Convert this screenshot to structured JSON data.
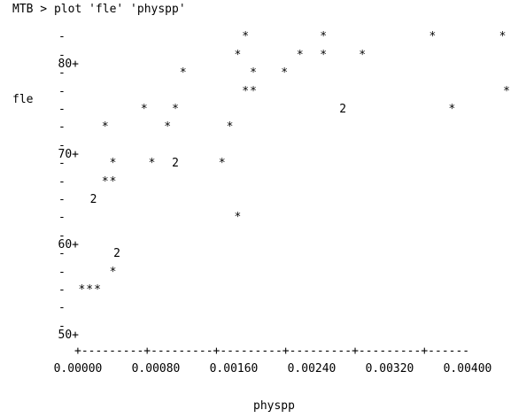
{
  "command": "MTB > plot 'fle' 'physpp'",
  "chart_data": {
    "type": "scatter",
    "xlabel": "physpp",
    "ylabel": "fle",
    "xlim": [
      0.0,
      0.0048
    ],
    "ylim": [
      48,
      84
    ],
    "y_ticks": [
      {
        "value": 80,
        "label": "80+"
      },
      {
        "value": 70,
        "label": "70+"
      },
      {
        "value": 60,
        "label": "60+"
      },
      {
        "value": 50,
        "label": "50+"
      }
    ],
    "y_minor_ticks": [
      83,
      81,
      79,
      77,
      75,
      73,
      71,
      69,
      67,
      65,
      63,
      61,
      59,
      57,
      55,
      53,
      51
    ],
    "x_ticks": [
      {
        "value": 0.0,
        "label": "0.00000"
      },
      {
        "value": 0.0008,
        "label": "0.00080"
      },
      {
        "value": 0.0016,
        "label": "0.00160"
      },
      {
        "value": 0.0024,
        "label": "0.00240"
      },
      {
        "value": 0.0032,
        "label": "0.00320"
      },
      {
        "value": 0.004,
        "label": "0.00400"
      }
    ],
    "x_axis_line": "+---------+---------+---------+---------+---------+------",
    "points": [
      {
        "x": 0.00172,
        "y": 83,
        "symbol": "*"
      },
      {
        "x": 0.00252,
        "y": 83,
        "symbol": "*"
      },
      {
        "x": 0.00364,
        "y": 83,
        "symbol": "*"
      },
      {
        "x": 0.00436,
        "y": 83,
        "symbol": "*"
      },
      {
        "x": 0.00164,
        "y": 81,
        "symbol": "*"
      },
      {
        "x": 0.00228,
        "y": 81,
        "symbol": "*"
      },
      {
        "x": 0.00252,
        "y": 81,
        "symbol": "*"
      },
      {
        "x": 0.00292,
        "y": 81,
        "symbol": "*"
      },
      {
        "x": 0.00108,
        "y": 79,
        "symbol": "*"
      },
      {
        "x": 0.0018,
        "y": 79,
        "symbol": "*"
      },
      {
        "x": 0.00212,
        "y": 79,
        "symbol": "*"
      },
      {
        "x": 0.00172,
        "y": 77,
        "symbol": "*"
      },
      {
        "x": 0.0018,
        "y": 77,
        "symbol": "*"
      },
      {
        "x": 0.0044,
        "y": 77,
        "symbol": "*"
      },
      {
        "x": 0.00068,
        "y": 75,
        "symbol": "*"
      },
      {
        "x": 0.001,
        "y": 75,
        "symbol": "*"
      },
      {
        "x": 0.00272,
        "y": 75,
        "symbol": "2"
      },
      {
        "x": 0.00384,
        "y": 75,
        "symbol": "*"
      },
      {
        "x": 0.00028,
        "y": 73,
        "symbol": "*"
      },
      {
        "x": 0.00092,
        "y": 73,
        "symbol": "*"
      },
      {
        "x": 0.00156,
        "y": 73,
        "symbol": "*"
      },
      {
        "x": 0.00036,
        "y": 69,
        "symbol": "*"
      },
      {
        "x": 0.00076,
        "y": 69,
        "symbol": "*"
      },
      {
        "x": 0.001,
        "y": 69,
        "symbol": "2"
      },
      {
        "x": 0.00148,
        "y": 69,
        "symbol": "*"
      },
      {
        "x": 0.00028,
        "y": 67,
        "symbol": "*"
      },
      {
        "x": 0.00036,
        "y": 67,
        "symbol": "*"
      },
      {
        "x": 0.00016,
        "y": 65,
        "symbol": "2"
      },
      {
        "x": 0.00164,
        "y": 63,
        "symbol": "*"
      },
      {
        "x": 0.0004,
        "y": 59,
        "symbol": "2"
      },
      {
        "x": 0.00036,
        "y": 57,
        "symbol": "*"
      },
      {
        "x": 4e-05,
        "y": 55,
        "symbol": "*"
      },
      {
        "x": 0.00012,
        "y": 55,
        "symbol": "*"
      },
      {
        "x": 0.0002,
        "y": 55,
        "symbol": "*"
      }
    ]
  }
}
